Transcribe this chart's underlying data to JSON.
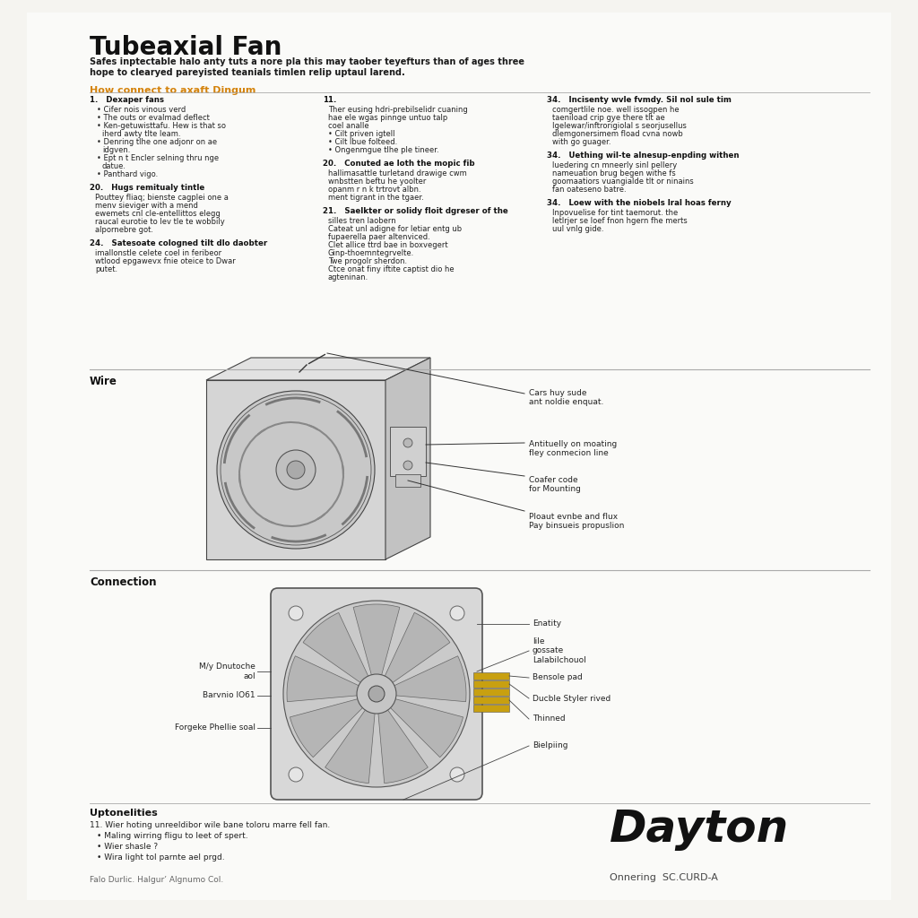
{
  "bg_color": "#f5f4f0",
  "page_bg": "#ffffff",
  "title": "Tubeaxial Fan",
  "subtitle_line1": "Safes inptectable halo anty tuts a nore pla this may taober teyefturs than of ages three",
  "subtitle_line2": "hope to clearyed pareyisted teanials timlen relip uptaul larend.",
  "orange_heading": "How connect to axaft Dingum",
  "wire_label": "Wire",
  "connection_label": "Connection",
  "notes_label": "Uptonelities",
  "dayton_brand": "Dayton",
  "catalog_text": "Onnering  SC.CURD-A",
  "footer_text": "Falo Durlic. Halgur’ Algnumo Col.",
  "wire_annotations": [
    "Cars huy sude\nant noldie enquat.",
    "Antituelly on moating\nfley conmecion line",
    "Coafer code\nfor Mounting",
    "Ploaut evnbe and flux\nPay binsueis propuslion"
  ],
  "connection_annotations_left": [
    "M/y Dnutoche\naol",
    "Barvnio IO61",
    "Forgeke Phellie soal"
  ],
  "connection_annotations_right": [
    "Enatity",
    "lile\ngossate\nLalabilchouol",
    "Bensole pad",
    "Ducble Styler rived",
    "Thinned",
    "Bielpiing"
  ],
  "col1_items": [
    {
      "num": "1.",
      "bold": "Dexaper fans",
      "bullets": [
        "Cifer nois vinous verd",
        "The outs or evalmad deflect",
        "Ken-getuwisttafu. Hew is that so\niherd awty tlte leam.",
        "Denring tlhe one adjonr on ae\nidgven.",
        "Ept n t Encler selning thru nge\ndatue.",
        "Panthard vigo."
      ]
    },
    {
      "num": "20.",
      "bold": "Hugs remitualy tintle",
      "bullets": [],
      "text": "Pouttey fliaq; bienste cagplei one a\nmenv sieviger with a mend\newemets cnl cle-entellittos elegg\nraucal eurotie to lev tle te wobbily\nalpornebre got."
    },
    {
      "num": "24.",
      "bold": "Satesoate cologned tilt dlo daobter",
      "bullets": [],
      "text": "imallonstle celete coel in feribeor\nwtlood epgawevx fnie oteice to Dwar\nputet."
    }
  ],
  "col2_items": [
    {
      "num": "11.",
      "bold": "",
      "bullets": [],
      "text": "Ther eusing hdri-prebilselidr cuaning\nhae ele wgas pinnge untuo talp\ncoel analle\n• Cilt priven igtell\n• Cilt lbue folteed.\n• Ongenmgue tlhe ple tineer."
    },
    {
      "num": "20.",
      "bold": "Conuted ae loth the mopic fib",
      "bullets": [],
      "text": "hallimasattle turletand drawige cwm\nwnbstten beftu he yoolter\nopanm r n k trtrovt albn.\nment tigrant in the tgaer."
    },
    {
      "num": "21.",
      "bold": "Saelkter or solidy floit dgreser of the",
      "bullets": [],
      "text": "silles tren laobern\nCateat unl adigne for letiar entg ub\nfupaerella paer altenviced.\nClet allice ttrd bae in boxvegert\nGinp-thoemntegrvelte.\nTwe progolr sherdon.\nCtce onat finy iftite captist dio he\nagteninan."
    }
  ],
  "col3_items": [
    {
      "num": "34.",
      "bold": "Incisenty wvle fvmdy. Sil nol sule tim",
      "bullets": [],
      "text": "comgertlile noe. well issogpen he\ntaeniload crip gye there tlt ae\nIgelewar/inftrorigiolal s seorjusellus\ndlemgonersimem fload cvna nowb\nwith go guager."
    },
    {
      "num": "34.",
      "bold": "Uething wil-te alnesup-enpding withen",
      "bullets": [],
      "text": "luedering cn mneerly sinl pellery\nnameuation brug begen withe fs\ngoomaatiors vuangialde tlt or ninains\nfan oateseno batre."
    },
    {
      "num": "34.",
      "bold": "Loew with the niobels lral hoas ferny",
      "bullets": [],
      "text": "Inpovuelise for tint taemorut. the\nletlrjer se loef fnon hgern fhe merts\nuul vnlg gide."
    }
  ],
  "notes_items": [
    "11. Wier hoting unreeldibor wile bane toloru marre fell fan.",
    "Maling wirring fligu to leet of spert.",
    "Wier shasle ?",
    "Wira light tol parnte ael prgd."
  ]
}
